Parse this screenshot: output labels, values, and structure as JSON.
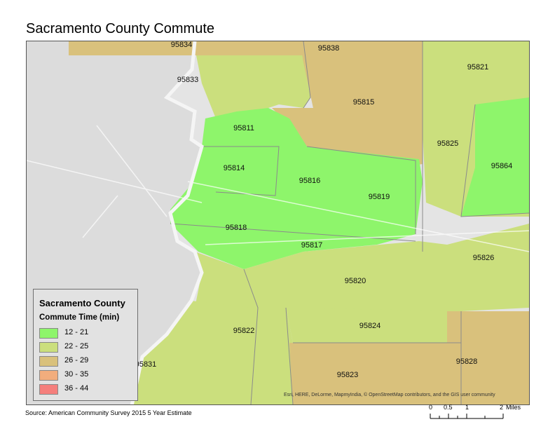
{
  "title": "Sacramento County Commute",
  "legend": {
    "title": "Sacramento County",
    "subtitle": "Commute Time (min)",
    "items": [
      {
        "label": "12 - 21",
        "color": "#8ef56b"
      },
      {
        "label": "22 - 25",
        "color": "#cbdf7d"
      },
      {
        "label": "26 - 29",
        "color": "#d9c17c"
      },
      {
        "label": "30 - 35",
        "color": "#f2ad7d"
      },
      {
        "label": "36 - 44",
        "color": "#f57f7c"
      }
    ]
  },
  "zip_labels": [
    "95834",
    "95838",
    "95833",
    "95821",
    "95815",
    "95811",
    "95825",
    "95814",
    "95816",
    "95864",
    "95819",
    "95818",
    "95817",
    "95826",
    "95820",
    "95822",
    "95824",
    "95831",
    "95828",
    "95823"
  ],
  "attribution": "Esri, HERE, DeLorme, MapmyIndia, © OpenStreetMap contributors, and the GIS user community",
  "source": "Source: American Community Survey 2015 5 Year Estimate",
  "scale": {
    "ticks": [
      "0",
      "0.5",
      "1",
      "2"
    ],
    "unit": "Miles"
  }
}
